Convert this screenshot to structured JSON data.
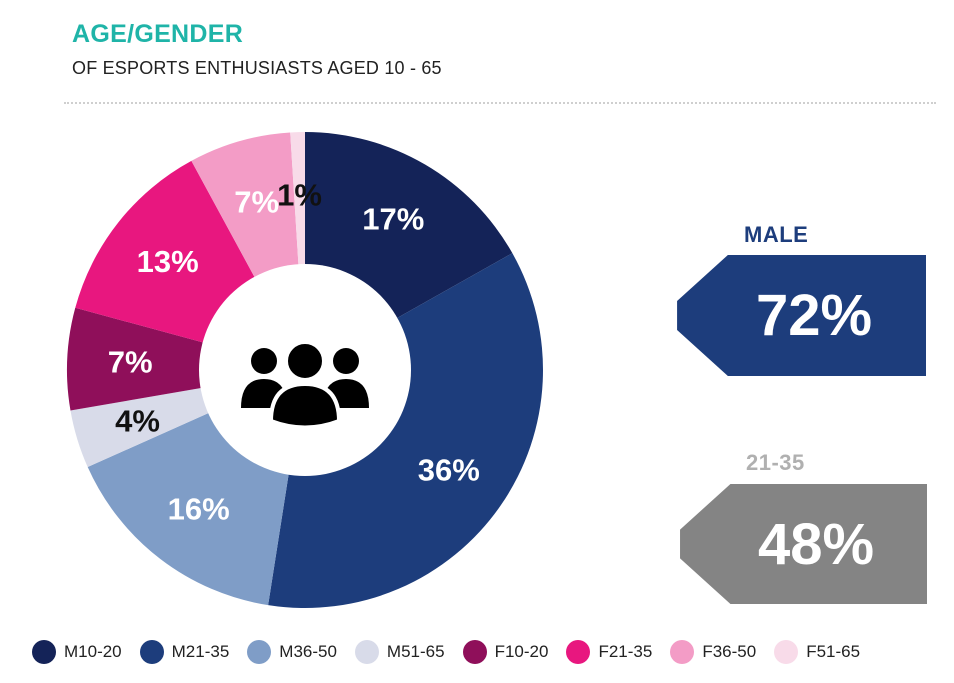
{
  "header": {
    "title": "AGE/GENDER",
    "subtitle": "OF ESPORTS ENTHUSIASTS AGED 10 - 65"
  },
  "callouts": {
    "male": {
      "label": "MALE",
      "value": "72%"
    },
    "age": {
      "label": "21-35",
      "value": "48%"
    }
  },
  "center_icon": "group-of-people-icon",
  "chart_data": {
    "type": "pie",
    "donut": true,
    "title": "AGE/GENDER",
    "subtitle": "OF ESPORTS ENTHUSIASTS AGED 10 - 65",
    "legend_position": "bottom",
    "categories": [
      "M10-20",
      "M21-35",
      "M36-50",
      "M51-65",
      "F10-20",
      "F21-35",
      "F36-50",
      "F51-65"
    ],
    "values": [
      17,
      36,
      16,
      4,
      7,
      13,
      7,
      1
    ],
    "labels": [
      "17%",
      "36%",
      "16%",
      "4%",
      "7%",
      "13%",
      "7%",
      "1%"
    ],
    "colors": [
      "#142358",
      "#1d3d7c",
      "#7f9dc7",
      "#d8dbe9",
      "#8f0f5a",
      "#e8177f",
      "#f39cc6",
      "#f8dbe9"
    ],
    "label_colors": [
      "#ffffff",
      "#ffffff",
      "#ffffff",
      "#111111",
      "#ffffff",
      "#ffffff",
      "#ffffff",
      "#111111"
    ]
  }
}
